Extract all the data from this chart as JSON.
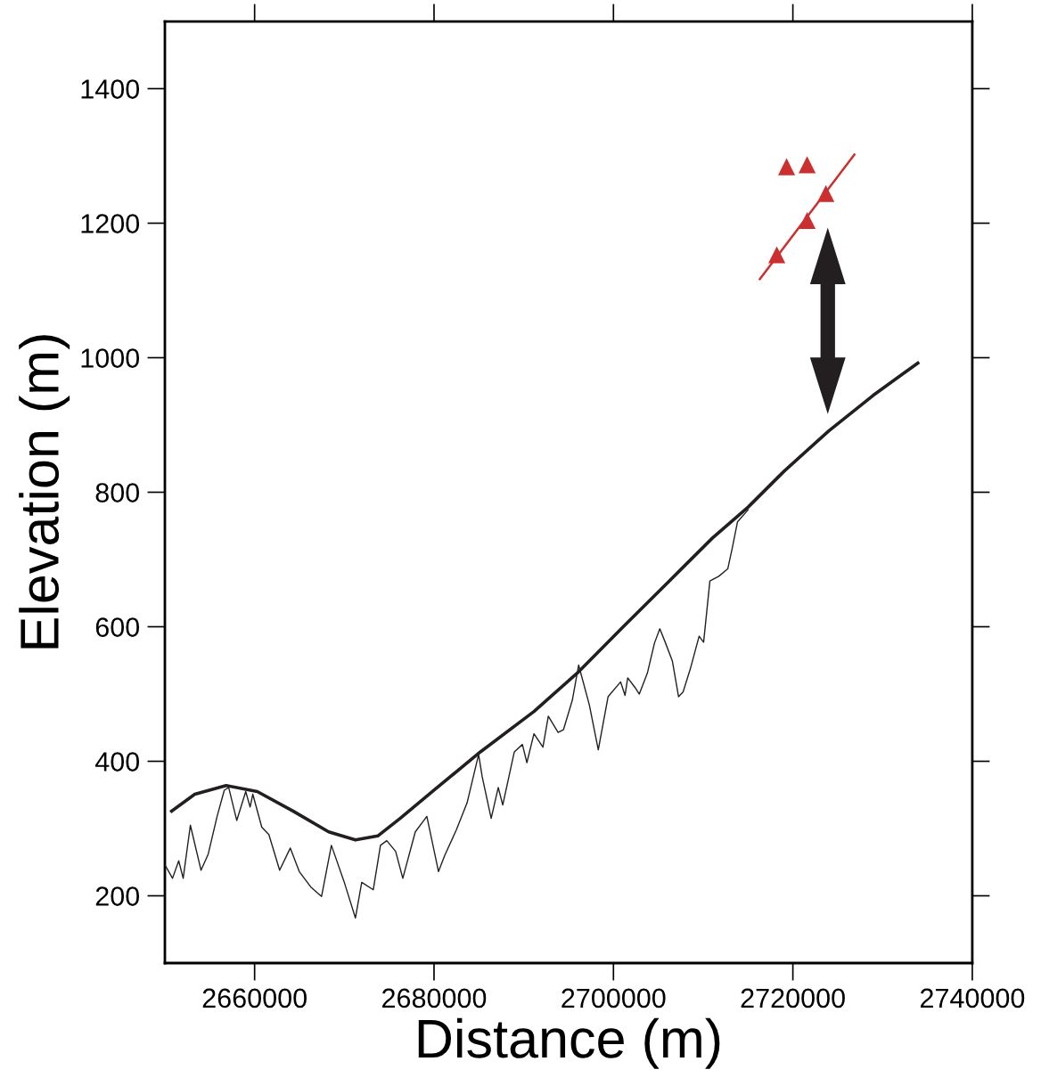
{
  "chart_data": {
    "type": "line",
    "xlabel": "Distance (m)",
    "ylabel": "Elevation (m)",
    "xlim": [
      2650000,
      2740000
    ],
    "xticks": [
      2660000,
      2680000,
      2700000,
      2720000,
      2740000
    ],
    "ylim": [
      100,
      1500
    ],
    "yticks": [
      200,
      400,
      600,
      800,
      1000,
      1200,
      1400
    ],
    "grid": false,
    "legend": false,
    "marker": "none",
    "line_style": "solid",
    "series": [
      {
        "color": "#231f20",
        "x": [
          2650750,
          2653330,
          2656820,
          2660300,
          2664280,
          2668260,
          2671240,
          2673730,
          2676220,
          2680000,
          2685170,
          2691140,
          2696120,
          2701090,
          2706070,
          2711040,
          2715020,
          2719000,
          2723980,
          2728950,
          2733930
        ],
        "values": [
          326,
          351,
          364,
          355,
          326,
          295,
          283,
          289,
          315,
          357,
          414,
          474,
          533,
          600,
          666,
          732,
          778,
          831,
          891,
          944,
          992
        ]
      },
      {
        "color": "#231f20",
        "x": [
          2650050,
          2650850,
          2651540,
          2652040,
          2652840,
          2654030,
          2654830,
          2655820,
          2656620,
          2657110,
          2658010,
          2659010,
          2659500,
          2659800,
          2660800,
          2661590,
          2662790,
          2663980,
          2664980,
          2666270,
          2667460,
          2668560,
          2669950,
          2671240,
          2671940,
          2673230,
          2674030,
          2674730,
          2675720,
          2676520,
          2677910,
          2679200,
          2680500,
          2681190,
          2682490,
          2683680,
          2684970,
          2685370,
          2686370,
          2687160,
          2687660,
          2688950,
          2689850,
          2690350,
          2691140,
          2692140,
          2692740,
          2693830,
          2694430,
          2695420,
          2696120,
          2697310,
          2698310,
          2699400,
          2700800,
          2701290,
          2701590,
          2702390,
          2702880,
          2703780,
          2704580,
          2705170,
          2705770,
          2706570,
          2707260,
          2707760,
          2708560,
          2709550,
          2710050,
          2710750,
          2711740,
          2712740,
          2713230,
          2713830,
          2715020
        ],
        "values": [
          245,
          226,
          252,
          226,
          305,
          238,
          262,
          318,
          357,
          361,
          312,
          355,
          332,
          351,
          302,
          291,
          238,
          271,
          236,
          213,
          199,
          275,
          222,
          167,
          220,
          209,
          275,
          282,
          266,
          226,
          295,
          318,
          236,
          260,
          298,
          338,
          410,
          377,
          315,
          361,
          335,
          414,
          425,
          398,
          441,
          421,
          467,
          443,
          447,
          491,
          543,
          484,
          417,
          496,
          518,
          498,
          524,
          510,
          500,
          531,
          576,
          597,
          577,
          549,
          496,
          503,
          537,
          586,
          577,
          668,
          675,
          686,
          716,
          756,
          774
        ]
      },
      {
        "type": "scatter",
        "color": "#cc2f2f",
        "marker": "triangle",
        "x": [
          2719300,
          2721590,
          2723680,
          2721590,
          2718210
        ],
        "values": [
          1284,
          1287,
          1244,
          1204,
          1153
        ]
      },
      {
        "type": "line",
        "color": "#cc2f2f",
        "x": [
          2716320,
          2726860
        ],
        "values": [
          1117,
          1302
        ]
      }
    ]
  }
}
